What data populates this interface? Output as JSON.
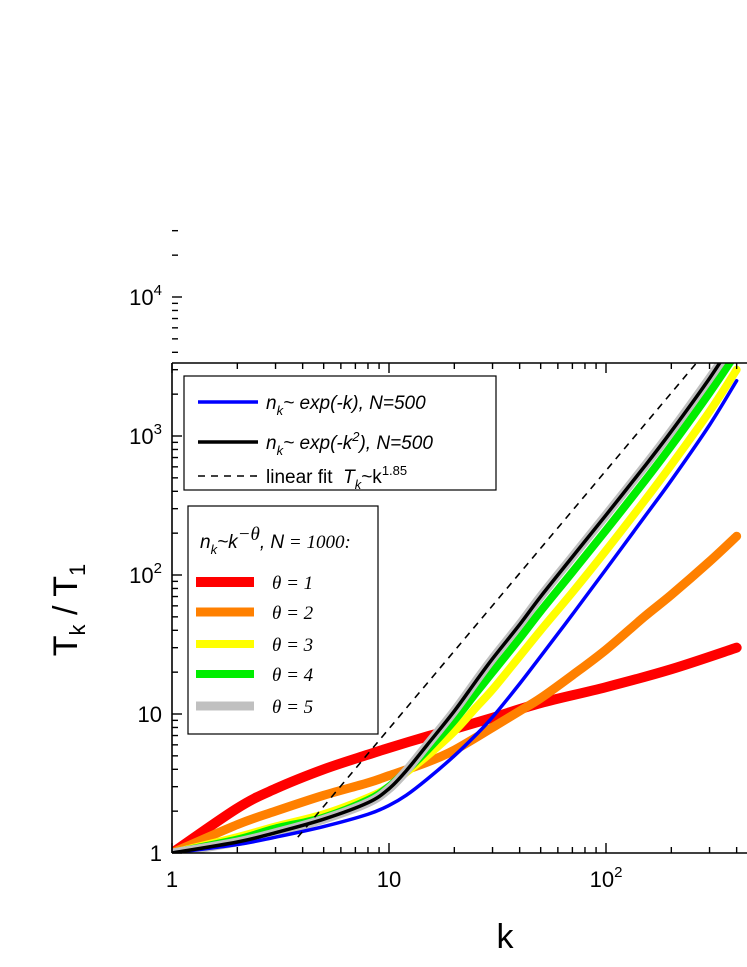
{
  "chart_data": {
    "type": "line",
    "xscale": "log",
    "yscale": "log",
    "xlim": [
      1,
      400
    ],
    "ylim": [
      1,
      30000
    ],
    "xlabel": "k",
    "ylabel_main": "T",
    "ylabel_sub1": "k",
    "ylabel_sep": " / ",
    "ylabel_main2": "T",
    "ylabel_sub2": "1",
    "x_ticks": [
      {
        "value": 1,
        "base": "1",
        "exp": ""
      },
      {
        "value": 10,
        "base": "10",
        "exp": ""
      },
      {
        "value": 100,
        "base": "10",
        "exp": "2"
      }
    ],
    "y_ticks": [
      {
        "value": 1,
        "base": "1",
        "exp": ""
      },
      {
        "value": 10,
        "base": "10",
        "exp": ""
      },
      {
        "value": 100,
        "base": "10",
        "exp": "2"
      },
      {
        "value": 1000,
        "base": "10",
        "exp": "3"
      },
      {
        "value": 10000,
        "base": "10",
        "exp": "4"
      }
    ],
    "legend1": {
      "entries": [
        {
          "key": "exp_k",
          "n": "n",
          "n_sub": "k",
          "rest": "~ exp(-k), N=500",
          "sup": ""
        },
        {
          "key": "exp_k2",
          "n": "n",
          "n_sub": "k",
          "rest": "~ exp(-k",
          "sup": "2",
          "rest2": "), N=500"
        },
        {
          "key": "fit",
          "text1": "linear fit  ",
          "T": "T",
          "T_sub": "k",
          "text2": "~k",
          "sup": "1.85"
        }
      ]
    },
    "legend2": {
      "title_n": "n",
      "title_n_sub": "k",
      "title_rest": "~k",
      "title_sup": "−θ",
      "title_rest2": ", N",
      "title_rest3": " = 1000:",
      "entries": [
        {
          "key": "theta1",
          "label": "θ = 1"
        },
        {
          "key": "theta2",
          "label": "θ = 2"
        },
        {
          "key": "theta3",
          "label": "θ = 3"
        },
        {
          "key": "theta4",
          "label": "θ = 4"
        },
        {
          "key": "theta5",
          "label": "θ = 5"
        }
      ]
    },
    "series": [
      {
        "key": "theta1",
        "color": "#ff0000",
        "width": 10,
        "dash": "",
        "x": [
          1,
          2,
          3,
          5,
          8,
          10,
          15,
          20,
          30,
          50,
          100,
          200,
          400
        ],
        "y": [
          1,
          2.1,
          2.9,
          4.0,
          5.1,
          5.7,
          6.9,
          7.8,
          9.4,
          12.0,
          15.6,
          21.0,
          30.0
        ]
      },
      {
        "key": "theta2",
        "color": "#ff8000",
        "width": 9,
        "dash": "",
        "x": [
          1,
          2,
          3,
          5,
          8,
          10,
          15,
          20,
          30,
          40,
          50,
          70,
          100,
          150,
          200,
          300,
          400
        ],
        "y": [
          1,
          1.6,
          2.0,
          2.6,
          3.2,
          3.6,
          4.5,
          5.5,
          8.0,
          10.5,
          13.0,
          19.0,
          29.0,
          50.0,
          72.0,
          125,
          190
        ]
      },
      {
        "key": "theta3",
        "color": "#ffff00",
        "width": 8,
        "dash": "",
        "x": [
          1,
          2,
          3,
          5,
          8,
          10,
          12,
          15,
          20,
          25,
          30,
          40,
          50,
          70,
          100,
          150,
          200,
          300,
          400
        ],
        "y": [
          1,
          1.3,
          1.55,
          1.9,
          2.5,
          3.0,
          3.8,
          5.0,
          7.5,
          11,
          15,
          26,
          40,
          75,
          150,
          340,
          620,
          1500,
          3000
        ]
      },
      {
        "key": "theta4",
        "color": "#00ee00",
        "width": 8,
        "dash": "",
        "x": [
          1,
          2,
          3,
          5,
          8,
          10,
          12,
          15,
          20,
          25,
          30,
          40,
          50,
          70,
          100,
          150,
          200,
          300,
          400
        ],
        "y": [
          1,
          1.25,
          1.5,
          1.8,
          2.4,
          3.0,
          3.9,
          5.5,
          9.0,
          14,
          20,
          35,
          55,
          105,
          210,
          470,
          850,
          2050,
          4000
        ]
      },
      {
        "key": "theta5",
        "color": "#c0c0c0",
        "width": 9,
        "dash": "",
        "x": [
          1,
          2,
          3,
          5,
          8,
          10,
          12,
          15,
          20,
          25,
          30,
          40,
          50,
          70,
          100,
          150,
          200,
          300,
          400
        ],
        "y": [
          1,
          1.2,
          1.4,
          1.75,
          2.3,
          2.9,
          3.9,
          6.0,
          10.5,
          17,
          25,
          44,
          70,
          135,
          270,
          600,
          1080,
          2600,
          5000
        ]
      },
      {
        "key": "exp_k",
        "color": "#0000ff",
        "width": 3.5,
        "dash": "",
        "x": [
          1,
          2,
          3,
          5,
          8,
          10,
          12,
          15,
          20,
          25,
          30,
          40,
          50,
          70,
          100,
          150,
          200,
          300,
          400
        ],
        "y": [
          1,
          1.15,
          1.3,
          1.55,
          1.9,
          2.2,
          2.6,
          3.4,
          5.0,
          7.0,
          9.5,
          16.5,
          26,
          52,
          110,
          260,
          480,
          1200,
          2500
        ]
      },
      {
        "key": "exp_k2",
        "color": "#000000",
        "width": 3.5,
        "dash": "",
        "x": [
          1,
          2,
          3,
          5,
          8,
          10,
          12,
          15,
          20,
          25,
          30,
          40,
          50,
          70,
          100,
          150,
          200,
          300,
          400
        ],
        "y": [
          1,
          1.2,
          1.4,
          1.75,
          2.3,
          2.9,
          3.9,
          6.0,
          10.5,
          17,
          25,
          44,
          70,
          135,
          270,
          600,
          1080,
          2600,
          5200
        ]
      },
      {
        "key": "fit",
        "color": "#000000",
        "width": 1.6,
        "dash": "7,6",
        "x": [
          3.8,
          400
        ],
        "y": [
          1.3,
          7400
        ]
      }
    ]
  }
}
